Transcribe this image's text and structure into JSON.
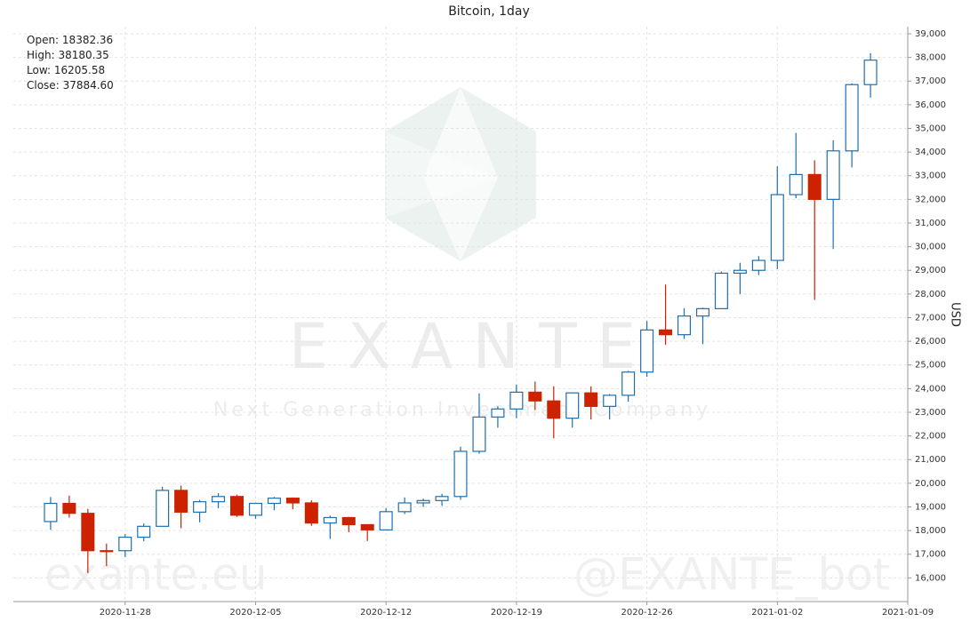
{
  "chart_data": {
    "type": "candlestick",
    "title": "Bitcoin, 1day",
    "y_label": "USD",
    "info": [
      {
        "label": "Open:",
        "text": "18382.36"
      },
      {
        "label": "High:",
        "text": "38180.35"
      },
      {
        "label": "Low:",
        "text": "16205.58"
      },
      {
        "label": "Close:",
        "text": "37884.60"
      }
    ],
    "watermark": {
      "brand": "E X A N T E",
      "tagline": "Next Generation Investment Company",
      "site": "exante.eu",
      "bot": "@EXANTE_bot"
    },
    "up_color": "#1f6fae",
    "down_color": "#cc2200",
    "grid": true,
    "x": [
      "2020-11-24",
      "2020-11-25",
      "2020-11-26",
      "2020-11-27",
      "2020-11-28",
      "2020-11-29",
      "2020-11-30",
      "2020-12-01",
      "2020-12-02",
      "2020-12-03",
      "2020-12-04",
      "2020-12-05",
      "2020-12-06",
      "2020-12-07",
      "2020-12-08",
      "2020-12-09",
      "2020-12-10",
      "2020-12-11",
      "2020-12-12",
      "2020-12-13",
      "2020-12-14",
      "2020-12-15",
      "2020-12-16",
      "2020-12-17",
      "2020-12-18",
      "2020-12-19",
      "2020-12-20",
      "2020-12-21",
      "2020-12-22",
      "2020-12-23",
      "2020-12-24",
      "2020-12-25",
      "2020-12-26",
      "2020-12-27",
      "2020-12-28",
      "2020-12-29",
      "2020-12-30",
      "2020-12-31",
      "2021-01-01",
      "2021-01-02",
      "2021-01-03",
      "2021-01-04",
      "2021-01-05",
      "2021-01-06",
      "2021-01-07"
    ],
    "open": [
      18382,
      19150,
      18730,
      17150,
      17150,
      17720,
      18180,
      19700,
      18780,
      19220,
      19440,
      18650,
      19150,
      19370,
      19170,
      18320,
      18550,
      18250,
      18030,
      18800,
      19170,
      19270,
      19440,
      21350,
      22800,
      23140,
      23850,
      23480,
      22750,
      23820,
      23250,
      23720,
      24700,
      26480,
      26280,
      27070,
      27380,
      28880,
      29000,
      29420,
      32200,
      33050,
      32000,
      34050,
      36850
    ],
    "high": [
      19420,
      19480,
      18920,
      17450,
      17850,
      18300,
      19850,
      19900,
      19300,
      19580,
      19520,
      19170,
      19420,
      19400,
      19280,
      18630,
      18580,
      18270,
      18950,
      19400,
      19350,
      19550,
      21550,
      23800,
      23250,
      24170,
      24300,
      24100,
      23840,
      24100,
      23770,
      24750,
      26860,
      28400,
      27400,
      27420,
      28950,
      29320,
      29600,
      33400,
      34810,
      33650,
      34500,
      36900,
      38180
    ],
    "low": [
      18030,
      18550,
      16206,
      16500,
      16880,
      17550,
      18180,
      18100,
      18350,
      18940,
      18580,
      18500,
      18860,
      18900,
      18200,
      17650,
      17930,
      17560,
      18000,
      18700,
      19000,
      19050,
      19300,
      21250,
      22350,
      22750,
      23100,
      21900,
      22350,
      22700,
      22700,
      23450,
      24500,
      25850,
      26100,
      25880,
      27380,
      28000,
      28800,
      29050,
      32050,
      27750,
      29900,
      33350,
      36300
    ],
    "close": [
      19150,
      18730,
      17150,
      17130,
      17720,
      18180,
      19700,
      18780,
      19220,
      19440,
      18650,
      19150,
      19370,
      19170,
      18320,
      18550,
      18250,
      18030,
      18800,
      19170,
      19270,
      19440,
      21350,
      22800,
      23140,
      23850,
      23480,
      22750,
      23820,
      23250,
      23720,
      24700,
      26480,
      26280,
      27070,
      27380,
      28880,
      29000,
      29420,
      32200,
      33050,
      32000,
      34050,
      36850,
      37885
    ],
    "xlim": [
      "2020-11-22",
      "2021-01-09"
    ],
    "xticks": [
      "2020-11-28",
      "2020-12-05",
      "2020-12-12",
      "2020-12-19",
      "2020-12-26",
      "2021-01-02",
      "2021-01-09"
    ],
    "ylim": [
      15000,
      39300
    ],
    "yticks": [
      {
        "value": 16000,
        "label": "16,000"
      },
      {
        "value": 17000,
        "label": "17,000"
      },
      {
        "value": 18000,
        "label": "18,000"
      },
      {
        "value": 19000,
        "label": "19,000"
      },
      {
        "value": 20000,
        "label": "20,000"
      },
      {
        "value": 21000,
        "label": "21,000"
      },
      {
        "value": 22000,
        "label": "22,000"
      },
      {
        "value": 23000,
        "label": "23,000"
      },
      {
        "value": 24000,
        "label": "24,000"
      },
      {
        "value": 25000,
        "label": "25,000"
      },
      {
        "value": 26000,
        "label": "26,000"
      },
      {
        "value": 27000,
        "label": "27,000"
      },
      {
        "value": 28000,
        "label": "28,000"
      },
      {
        "value": 29000,
        "label": "29,000"
      },
      {
        "value": 30000,
        "label": "30,000"
      },
      {
        "value": 31000,
        "label": "31,000"
      },
      {
        "value": 32000,
        "label": "32,000"
      },
      {
        "value": 33000,
        "label": "33,000"
      },
      {
        "value": 34000,
        "label": "34,000"
      },
      {
        "value": 35000,
        "label": "35,000"
      },
      {
        "value": 36000,
        "label": "36,000"
      },
      {
        "value": 37000,
        "label": "37,000"
      },
      {
        "value": 38000,
        "label": "38,000"
      },
      {
        "value": 39000,
        "label": "39,000"
      }
    ]
  }
}
